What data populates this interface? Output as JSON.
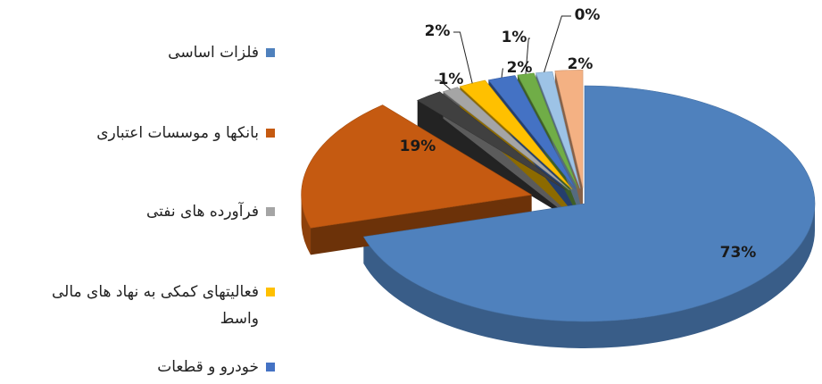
{
  "chart_data": {
    "type": "pie",
    "style": "3d-exploded",
    "title": "",
    "legend_position": "left",
    "slices": [
      {
        "label": "فلزات اساسی",
        "value": 73,
        "display": "73%",
        "color": "#4f81bd"
      },
      {
        "label": "بانکها و موسسات اعتباری",
        "value": 19,
        "display": "19%",
        "color": "#c55a11"
      },
      {
        "label": "",
        "value": 2,
        "display": "",
        "color": "#404040"
      },
      {
        "label": "فرآورده های نفتی",
        "value": 1,
        "display": "1%",
        "color": "#a5a5a5"
      },
      {
        "label": "فعالیتهای کمکی به نهاد های مالی واسط",
        "value": 2,
        "display": "2%",
        "color": "#ffc000"
      },
      {
        "label": "خودرو و قطعات",
        "value": 2,
        "display": "2%",
        "color": "#4472c4"
      },
      {
        "label": "",
        "value": 1,
        "display": "1%",
        "color": "#70ad47"
      },
      {
        "label": "",
        "value": 0,
        "display": "0%",
        "color": "#9dc3e6"
      },
      {
        "label": "",
        "value": 2,
        "display": "2%",
        "color": "#f4b183"
      }
    ],
    "legend": [
      {
        "label": "فلزات اساسی",
        "color": "#4f81bd"
      },
      {
        "label": "بانکها و موسسات اعتباری",
        "color": "#c55a11"
      },
      {
        "label": "فرآورده های نفتی",
        "color": "#a5a5a5"
      },
      {
        "label": "فعالیتهای کمکی به نهاد های مالی واسط",
        "color": "#ffc000"
      },
      {
        "label": "خودرو و قطعات",
        "color": "#4472c4"
      }
    ]
  }
}
